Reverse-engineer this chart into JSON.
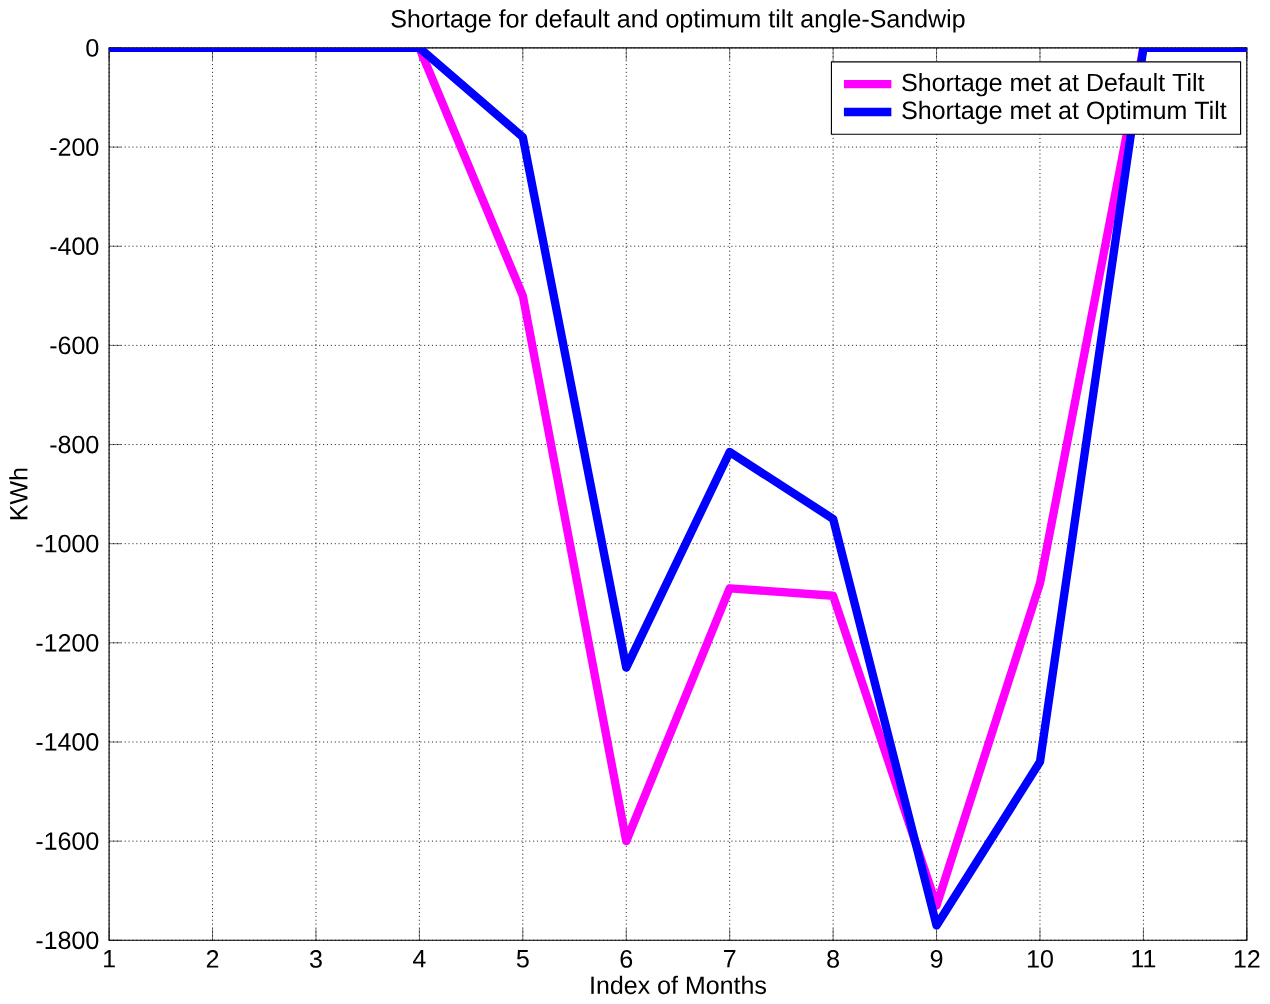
{
  "chart_data": {
    "type": "line",
    "title": "Shortage for default and optimum tilt angle-Sandwip",
    "xlabel": "Index of Months",
    "ylabel": "KWh",
    "x": [
      1,
      2,
      3,
      4,
      5,
      6,
      7,
      8,
      9,
      10,
      11,
      12
    ],
    "series": [
      {
        "name": "Shortage met at Default Tilt",
        "color": "#ff00ff",
        "values": [
          null,
          null,
          null,
          0,
          -500,
          -1600,
          -1090,
          -1105,
          -1730,
          -1080,
          0,
          null
        ]
      },
      {
        "name": "Shortage met at Optimum Tilt",
        "color": "#0000ff",
        "values": [
          0,
          0,
          0,
          0,
          -180,
          -1250,
          -815,
          -950,
          -1770,
          -1440,
          0,
          0
        ]
      }
    ],
    "xlim": [
      1,
      12
    ],
    "ylim": [
      -1800,
      0
    ],
    "xticks": [
      1,
      2,
      3,
      4,
      5,
      6,
      7,
      8,
      9,
      10,
      11,
      12
    ],
    "yticks": [
      -1800,
      -1600,
      -1400,
      -1200,
      -1000,
      -800,
      -600,
      -400,
      -200,
      0
    ],
    "grid": true,
    "legend": "top right",
    "marker": "none",
    "line_style": "solid"
  }
}
